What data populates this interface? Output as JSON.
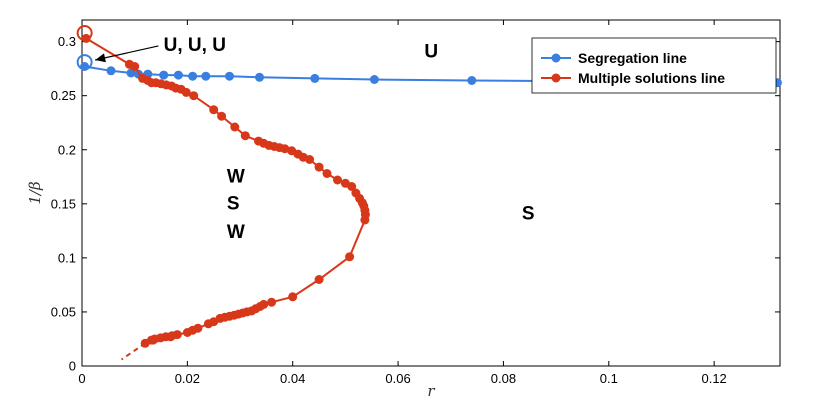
{
  "chart_data": {
    "type": "scatter",
    "xlabel": "r",
    "ylabel": "1/β",
    "xlim": [
      0,
      0.1325
    ],
    "ylim": [
      0,
      0.32
    ],
    "grid": false,
    "legend_position": "top-right",
    "x_ticks": [
      "0",
      "0.02",
      "0.04",
      "0.06",
      "0.08",
      "0.1",
      "0.12"
    ],
    "x_tick_values": [
      0,
      0.02,
      0.04,
      0.06,
      0.08,
      0.1,
      0.12
    ],
    "y_ticks": [
      "0",
      "0.05",
      "0.1",
      "0.15",
      "0.2",
      "0.25",
      "0.3"
    ],
    "y_tick_values": [
      0,
      0.05,
      0.1,
      0.15,
      0.2,
      0.25,
      0.3
    ],
    "series": [
      {
        "name": "Segregation line",
        "color": "#3a7ee0",
        "points": [
          [
            0.0005,
            0.277
          ],
          [
            0.0055,
            0.273
          ],
          [
            0.0093,
            0.271
          ],
          [
            0.0107,
            0.27
          ],
          [
            0.0125,
            0.27
          ],
          [
            0.0155,
            0.269
          ],
          [
            0.0183,
            0.269
          ],
          [
            0.021,
            0.268
          ],
          [
            0.0235,
            0.268
          ],
          [
            0.028,
            0.268
          ],
          [
            0.0337,
            0.267
          ],
          [
            0.0442,
            0.266
          ],
          [
            0.0555,
            0.265
          ],
          [
            0.074,
            0.264
          ],
          [
            0.132,
            0.262
          ]
        ]
      },
      {
        "name": "Multiple solutions line",
        "color": "#d8381a",
        "points": [
          [
            0.0008,
            0.303
          ],
          [
            0.009,
            0.279
          ],
          [
            0.01,
            0.277
          ],
          [
            0.0115,
            0.266
          ],
          [
            0.0125,
            0.264
          ],
          [
            0.0132,
            0.262
          ],
          [
            0.014,
            0.262
          ],
          [
            0.015,
            0.261
          ],
          [
            0.016,
            0.26
          ],
          [
            0.017,
            0.259
          ],
          [
            0.0178,
            0.257
          ],
          [
            0.0188,
            0.256
          ],
          [
            0.0198,
            0.253
          ],
          [
            0.0212,
            0.25
          ],
          [
            0.025,
            0.237
          ],
          [
            0.0265,
            0.231
          ],
          [
            0.029,
            0.221
          ],
          [
            0.031,
            0.213
          ],
          [
            0.0335,
            0.208
          ],
          [
            0.0345,
            0.206
          ],
          [
            0.0355,
            0.204
          ],
          [
            0.0365,
            0.203
          ],
          [
            0.0375,
            0.202
          ],
          [
            0.0385,
            0.201
          ],
          [
            0.0398,
            0.199
          ],
          [
            0.041,
            0.196
          ],
          [
            0.042,
            0.193
          ],
          [
            0.0432,
            0.191
          ],
          [
            0.045,
            0.184
          ],
          [
            0.0465,
            0.178
          ],
          [
            0.0485,
            0.172
          ],
          [
            0.05,
            0.169
          ],
          [
            0.0512,
            0.166
          ],
          [
            0.052,
            0.16
          ],
          [
            0.0527,
            0.155
          ],
          [
            0.0532,
            0.151
          ],
          [
            0.0535,
            0.148
          ],
          [
            0.0537,
            0.144
          ],
          [
            0.0538,
            0.14
          ],
          [
            0.0537,
            0.135
          ],
          [
            0.0508,
            0.101
          ],
          [
            0.045,
            0.08
          ],
          [
            0.04,
            0.064
          ],
          [
            0.036,
            0.059
          ],
          [
            0.0345,
            0.057
          ],
          [
            0.0338,
            0.055
          ],
          [
            0.033,
            0.053
          ],
          [
            0.0322,
            0.051
          ],
          [
            0.0313,
            0.05
          ],
          [
            0.0305,
            0.049
          ],
          [
            0.0297,
            0.048
          ],
          [
            0.0289,
            0.047
          ],
          [
            0.028,
            0.046
          ],
          [
            0.0271,
            0.045
          ],
          [
            0.0262,
            0.044
          ],
          [
            0.025,
            0.041
          ],
          [
            0.024,
            0.039
          ],
          [
            0.022,
            0.035
          ],
          [
            0.021,
            0.033
          ],
          [
            0.02,
            0.031
          ],
          [
            0.0181,
            0.029
          ],
          [
            0.0171,
            0.028
          ],
          [
            0.0168,
            0.027
          ],
          [
            0.0159,
            0.027
          ],
          [
            0.0149,
            0.026
          ],
          [
            0.0138,
            0.025
          ],
          [
            0.0135,
            0.024
          ],
          [
            0.0132,
            0.024
          ],
          [
            0.012,
            0.021
          ]
        ],
        "dashed_extension": [
          [
            0.012,
            0.021
          ],
          [
            0.0075,
            0.006
          ]
        ]
      }
    ],
    "markers": [
      {
        "name": "open-circle-blue",
        "x": 0.0005,
        "y": 0.281,
        "color": "#3a7ee0"
      },
      {
        "name": "open-circle-red",
        "x": 0.0005,
        "y": 0.308,
        "color": "#d8381a"
      }
    ],
    "annotations": [
      {
        "text": "U, U, U",
        "x": 0.0155,
        "y": 0.298,
        "arrow_to": [
          0.0025,
          0.283
        ],
        "arrow_from": [
          0.0145,
          0.296
        ]
      },
      {
        "text": "U",
        "x": 0.065,
        "y": 0.292
      },
      {
        "text": "W",
        "x": 0.0275,
        "y": 0.176
      },
      {
        "text": "S",
        "x": 0.0275,
        "y": 0.151
      },
      {
        "text": "W",
        "x": 0.0275,
        "y": 0.125
      },
      {
        "text": "S",
        "x": 0.0835,
        "y": 0.142
      }
    ]
  }
}
